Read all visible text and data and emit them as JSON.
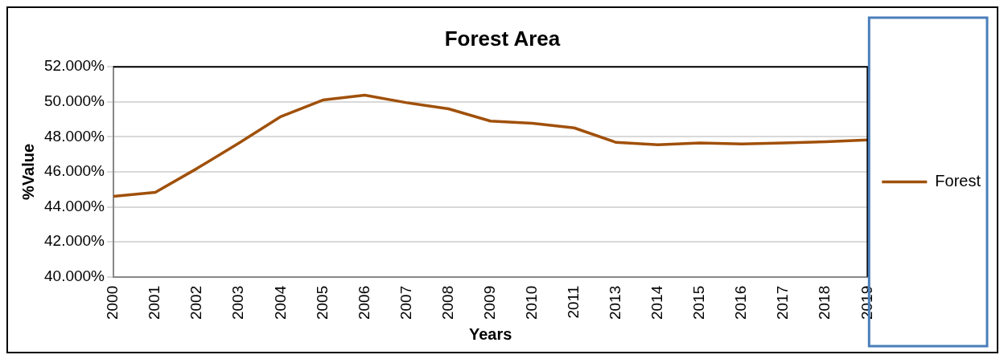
{
  "chart_data": {
    "type": "line",
    "title": "Forest Area",
    "xlabel": "Years",
    "ylabel": "%Value",
    "categories": [
      "2000",
      "2001",
      "2002",
      "2003",
      "2004",
      "2005",
      "2006",
      "2007",
      "2008",
      "2009",
      "2010",
      "2011",
      "2013",
      "2014",
      "2015",
      "2016",
      "2017",
      "2018",
      "2019"
    ],
    "series": [
      {
        "name": "Forest",
        "color": "#a0500a",
        "values": [
          44.6,
          44.83,
          46.2,
          47.65,
          49.16,
          50.1,
          50.38,
          49.95,
          49.6,
          48.9,
          48.77,
          48.51,
          47.68,
          47.55,
          47.65,
          47.59,
          47.65,
          47.72,
          47.82
        ]
      }
    ],
    "ylim": [
      40,
      52
    ],
    "yticks": [
      {
        "value": 40,
        "label": "40.000%"
      },
      {
        "value": 42,
        "label": "42.000%"
      },
      {
        "value": 44,
        "label": "44.000%"
      },
      {
        "value": 46,
        "label": "46.000%"
      },
      {
        "value": 48,
        "label": "48.000%"
      },
      {
        "value": 50,
        "label": "50.000%"
      },
      {
        "value": 52,
        "label": "52.000%"
      }
    ],
    "grid": "y",
    "legend": "right",
    "marker": "none",
    "line_style": "solid"
  }
}
